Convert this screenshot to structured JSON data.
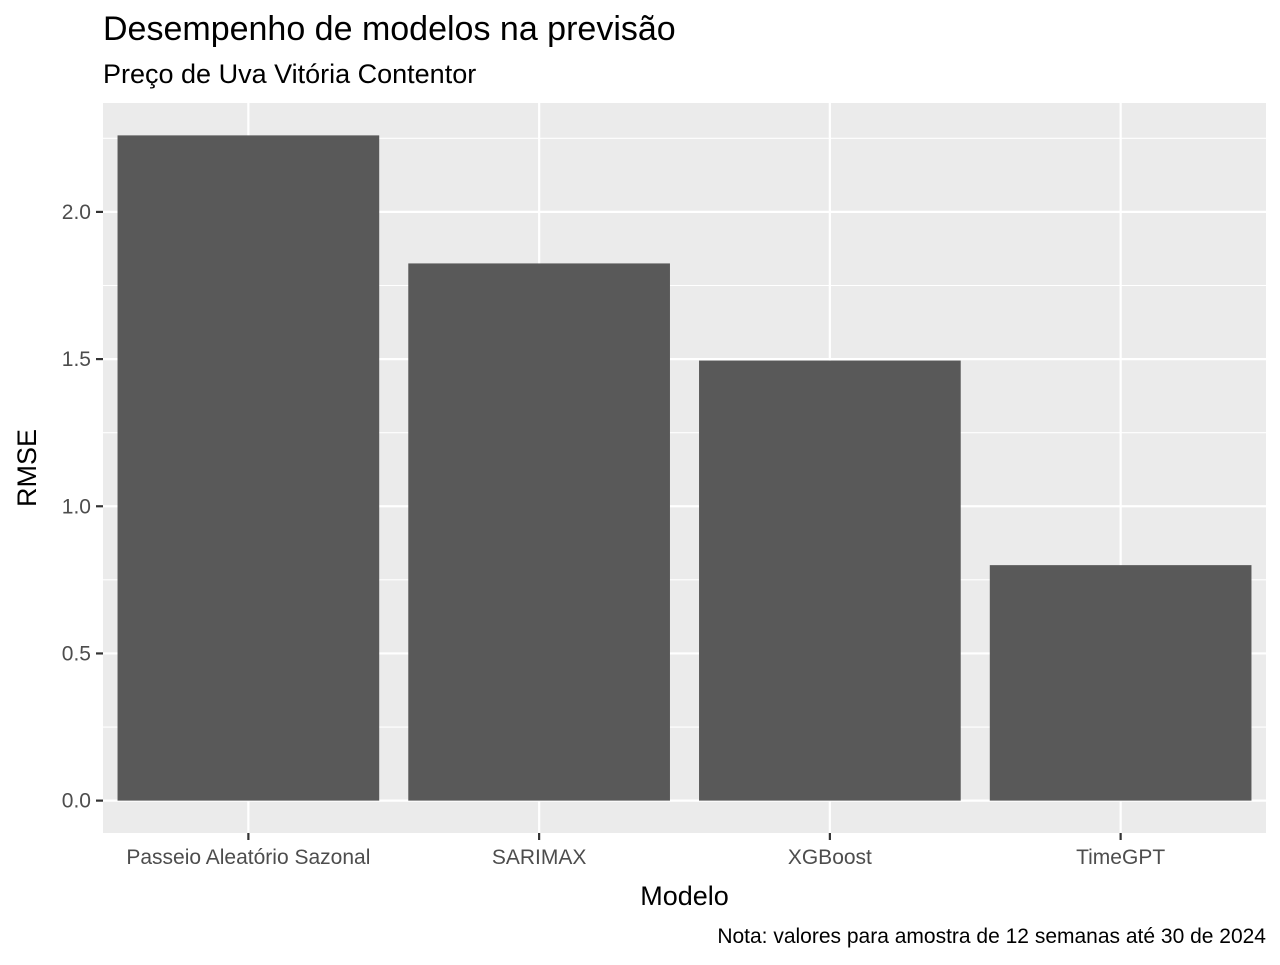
{
  "chart_data": {
    "type": "bar",
    "title": "Desempenho de modelos na previsão",
    "subtitle": "Preço de Uva Vitória Contentor",
    "xlabel": "Modelo",
    "ylabel": "RMSE",
    "caption": "Nota: valores para amostra de 12 semanas até 30 de 2024",
    "categories": [
      "Passeio Aleatório Sazonal",
      "SARIMAX",
      "XGBoost",
      "TimeGPT"
    ],
    "values": [
      2.26,
      1.825,
      1.495,
      0.8
    ],
    "ylim": [
      -0.11,
      2.37
    ],
    "yticks": [
      0.0,
      0.5,
      1.0,
      1.5,
      2.0
    ],
    "ytick_labels": [
      "0.0",
      "0.5",
      "1.0",
      "1.5",
      "2.0"
    ],
    "grid": true,
    "colors": {
      "bar": "#595959",
      "panel": "#ebebeb",
      "grid": "#ffffff",
      "tick_text": "#4d4d4d",
      "tick_mark": "#333333"
    }
  }
}
